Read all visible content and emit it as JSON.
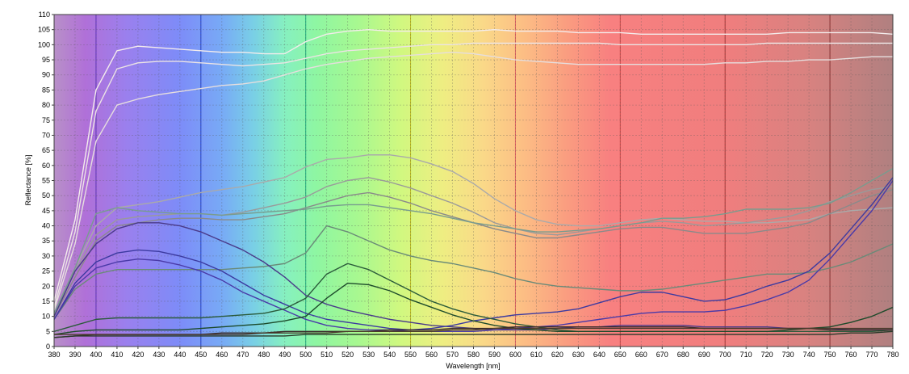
{
  "chart_data": {
    "type": "line",
    "title": "",
    "xlabel": "Wavelength [nm]",
    "ylabel": "Reflectance [%]",
    "xlim": [
      380,
      780
    ],
    "ylim": [
      0,
      110
    ],
    "x_ticks": [
      380,
      390,
      400,
      410,
      420,
      430,
      440,
      450,
      460,
      470,
      480,
      490,
      500,
      510,
      520,
      530,
      540,
      550,
      560,
      570,
      580,
      590,
      600,
      610,
      620,
      630,
      640,
      650,
      660,
      670,
      680,
      690,
      700,
      710,
      720,
      730,
      740,
      750,
      760,
      770,
      780
    ],
    "y_ticks": [
      0,
      5,
      10,
      15,
      20,
      25,
      30,
      35,
      40,
      45,
      50,
      55,
      60,
      65,
      70,
      75,
      80,
      85,
      90,
      95,
      100,
      105,
      110
    ],
    "grid": true,
    "legend": "none",
    "background": "visible spectrum gradient",
    "spectrum_colors": [
      {
        "x": 380,
        "color": "#b890c8"
      },
      {
        "x": 395,
        "color": "#b070d8"
      },
      {
        "x": 415,
        "color": "#9a80ee"
      },
      {
        "x": 440,
        "color": "#7d8cf8"
      },
      {
        "x": 460,
        "color": "#78aaf6"
      },
      {
        "x": 475,
        "color": "#79cfe6"
      },
      {
        "x": 490,
        "color": "#86f0c0"
      },
      {
        "x": 505,
        "color": "#8ef6a2"
      },
      {
        "x": 525,
        "color": "#a8f890"
      },
      {
        "x": 545,
        "color": "#d0f880"
      },
      {
        "x": 565,
        "color": "#eeee82"
      },
      {
        "x": 585,
        "color": "#fad888"
      },
      {
        "x": 605,
        "color": "#fcbc84"
      },
      {
        "x": 625,
        "color": "#fa9c80"
      },
      {
        "x": 645,
        "color": "#f88080"
      },
      {
        "x": 700,
        "color": "#f07e7e"
      },
      {
        "x": 740,
        "color": "#d88280"
      },
      {
        "x": 780,
        "color": "#b08080"
      }
    ],
    "vertical_lines": [
      {
        "x": 400,
        "color": "#6030c0"
      },
      {
        "x": 450,
        "color": "#2040d0"
      },
      {
        "x": 500,
        "color": "#20b080"
      },
      {
        "x": 550,
        "color": "#c0c020"
      },
      {
        "x": 600,
        "color": "#e06060"
      },
      {
        "x": 650,
        "color": "#d04848"
      },
      {
        "x": 700,
        "color": "#b03838"
      },
      {
        "x": 750,
        "color": "#903030"
      }
    ],
    "x": [
      380,
      390,
      400,
      410,
      420,
      430,
      440,
      450,
      460,
      470,
      480,
      490,
      500,
      510,
      520,
      530,
      540,
      550,
      560,
      570,
      580,
      590,
      600,
      610,
      620,
      630,
      640,
      650,
      660,
      670,
      680,
      690,
      700,
      710,
      720,
      730,
      740,
      750,
      760,
      770,
      780
    ],
    "series": [
      {
        "color": "#f4ecec",
        "values": [
          15,
          42,
          85,
          98,
          99.5,
          99,
          98.5,
          98,
          97.5,
          97.5,
          97,
          97,
          101,
          103.5,
          104.5,
          105,
          104.5,
          104.5,
          104.5,
          104.5,
          104.5,
          105,
          104.5,
          104.5,
          104.5,
          104,
          104,
          104,
          103.5,
          103.5,
          103.5,
          103.5,
          103.5,
          103.5,
          103.5,
          104,
          104,
          104,
          104,
          104,
          103.5
        ]
      },
      {
        "color": "#ece4e4",
        "values": [
          13,
          38,
          78,
          92,
          94,
          94.5,
          94.5,
          94,
          93.5,
          93,
          93.5,
          94,
          95.5,
          97,
          98,
          98.5,
          99,
          99.5,
          100,
          100,
          100.5,
          100.5,
          100.5,
          100.5,
          100.5,
          100.5,
          100.5,
          100,
          100,
          100,
          100,
          100,
          100,
          100,
          100.5,
          100.5,
          100.5,
          100.5,
          100.5,
          100.5,
          100.5
        ]
      },
      {
        "color": "#e6dede",
        "values": [
          12,
          34,
          68,
          80,
          82,
          83.5,
          84.5,
          85.5,
          86.5,
          87,
          88,
          90,
          92,
          93.5,
          94.5,
          95.5,
          96,
          96.5,
          97,
          97.5,
          97,
          96,
          95,
          94.5,
          94,
          93.5,
          93.5,
          93.5,
          93.5,
          93.5,
          93.5,
          93.5,
          94,
          94,
          94.5,
          94.5,
          95,
          95,
          95.5,
          96,
          96
        ]
      },
      {
        "color": "#aaaaaa",
        "values": [
          11,
          26,
          40,
          46,
          47,
          48,
          49.5,
          51,
          52,
          53,
          54.5,
          56,
          59.5,
          62,
          62.5,
          63.5,
          63.5,
          62.5,
          60.5,
          58,
          54,
          49,
          45,
          42,
          40.5,
          40,
          40,
          41,
          42,
          42.5,
          42,
          41.5,
          41.5,
          41,
          41,
          41.5,
          42,
          44,
          45,
          45.5,
          46
        ]
      },
      {
        "color": "#9a9a9a",
        "values": [
          11,
          25,
          37,
          42,
          43,
          43.5,
          44,
          44,
          43.5,
          44.5,
          46,
          47.5,
          49.5,
          53,
          55,
          56,
          54.5,
          52.5,
          50,
          47.5,
          44.5,
          41,
          39,
          37.5,
          37,
          38,
          39,
          40,
          41,
          41.5,
          41,
          40,
          40.5,
          41,
          42,
          43,
          45,
          48,
          50,
          52,
          53
        ]
      },
      {
        "color": "#8a8a8a",
        "values": [
          10,
          23,
          35,
          40,
          41,
          42,
          42.5,
          42.5,
          42,
          42,
          43,
          44,
          46,
          48,
          50,
          51,
          49.5,
          47.5,
          45,
          43,
          41,
          39,
          37.5,
          36,
          36,
          37,
          38,
          39,
          39.5,
          39.5,
          38.5,
          37.5,
          37.5,
          37.5,
          38.5,
          39.5,
          41,
          44,
          47,
          50,
          52
        ]
      },
      {
        "color": "#789c8e",
        "values": [
          11,
          26,
          44,
          46,
          45,
          44.5,
          44,
          44,
          43.5,
          44,
          44.5,
          45,
          45.5,
          46.5,
          47,
          47,
          46,
          45,
          44,
          42.5,
          41,
          40,
          39,
          38,
          38,
          38.5,
          39,
          40,
          41,
          42.5,
          42.5,
          43,
          44,
          45.5,
          45.5,
          45.5,
          46,
          47.5,
          51,
          55,
          59
        ]
      },
      {
        "color": "#6a8a78",
        "values": [
          9,
          19,
          24,
          25.5,
          25.5,
          25.5,
          25.5,
          25.5,
          25.5,
          26,
          26.5,
          27.5,
          31,
          40,
          38,
          35,
          32,
          30,
          28.5,
          27.5,
          26,
          24.5,
          22.5,
          21,
          20,
          19.5,
          19,
          18.5,
          18.5,
          19,
          20,
          21,
          22,
          23,
          24,
          24,
          24.5,
          26,
          28,
          31,
          34
        ]
      },
      {
        "color": "#4a3a8a",
        "values": [
          10,
          25,
          34,
          39,
          41,
          41,
          40,
          38,
          35,
          32,
          28,
          23,
          17,
          14,
          12,
          10.5,
          9,
          8,
          7,
          6.5,
          6,
          5.5,
          5.5,
          5.5,
          6,
          6.5,
          6.5,
          7,
          7,
          7,
          7,
          6.5,
          6.5,
          6.5,
          6.5,
          6,
          6,
          6,
          5.5,
          5.5,
          5.5
        ]
      },
      {
        "color": "#3c3aa0",
        "values": [
          9,
          21,
          28,
          31,
          32,
          31.5,
          30,
          28,
          25,
          21,
          17,
          14,
          11,
          9,
          8,
          7,
          6,
          5.5,
          6,
          7,
          8.5,
          9.5,
          10.5,
          11,
          11.5,
          12.5,
          14.5,
          16.5,
          18,
          18,
          16.5,
          15,
          15.5,
          17.5,
          20,
          22,
          25,
          31,
          39,
          47,
          56
        ]
      },
      {
        "color": "#4a3aa8",
        "values": [
          9,
          20,
          26,
          28,
          29,
          28.5,
          27,
          25,
          22,
          18,
          15,
          12,
          9,
          7,
          6,
          5.5,
          5.5,
          5,
          5,
          5,
          5,
          5.5,
          6,
          6.5,
          7,
          8,
          9,
          10,
          11,
          11.5,
          11.5,
          11.5,
          12,
          13.5,
          15.5,
          18,
          22,
          29,
          37,
          45,
          55
        ]
      },
      {
        "color": "#2a5a3a",
        "values": [
          5,
          7,
          9,
          9.5,
          9.5,
          9.5,
          9.5,
          9.5,
          10,
          10.5,
          11,
          12.5,
          16,
          24,
          27.5,
          25.5,
          22,
          18.5,
          15,
          12.5,
          10.5,
          9,
          7.5,
          6.5,
          5.5,
          5,
          5,
          5,
          5,
          5,
          5,
          5,
          5,
          5,
          5,
          5,
          5,
          5,
          5,
          5,
          5.5
        ]
      },
      {
        "color": "#1c4a2a",
        "values": [
          4,
          5,
          5.5,
          5.5,
          5.5,
          5.5,
          5.5,
          6,
          6.5,
          7,
          7.5,
          8.5,
          10,
          16,
          21,
          20.5,
          18.5,
          15.5,
          13,
          10.5,
          8.5,
          7,
          6,
          5.5,
          5,
          5,
          5,
          5,
          5,
          5,
          5,
          5,
          5,
          5,
          5,
          5.5,
          6,
          6.5,
          8,
          10,
          13
        ]
      },
      {
        "color": "#3a2a2a",
        "values": [
          3,
          3.5,
          4,
          4,
          4,
          4,
          4,
          4,
          4.5,
          4.5,
          4.5,
          5,
          5,
          5,
          5,
          5,
          5.5,
          5.5,
          5.5,
          6,
          6,
          6,
          6.5,
          6.5,
          6.5,
          6.5,
          6.5,
          6.5,
          6.5,
          6.5,
          6.5,
          6,
          6,
          6,
          6,
          6,
          6,
          5.5,
          5.5,
          5.5,
          5.5
        ]
      },
      {
        "color": "#4a3a2a",
        "values": [
          4,
          4,
          4,
          4,
          4,
          4,
          4,
          4,
          4,
          4,
          4.5,
          4.5,
          4.5,
          4.5,
          5,
          5,
          5,
          5,
          5,
          5.5,
          5.5,
          6,
          6,
          6,
          6,
          6,
          6,
          6,
          6,
          6,
          6,
          6,
          6,
          6,
          6,
          6,
          6,
          6,
          6,
          6,
          6
        ]
      },
      {
        "color": "#2a3a2a",
        "values": [
          3,
          3.5,
          3.5,
          3.5,
          3.5,
          3.5,
          3.5,
          3.5,
          3.5,
          3.5,
          3.5,
          3.5,
          4,
          4,
          4,
          4,
          4,
          4,
          4,
          4,
          4,
          4,
          4,
          4,
          4,
          4,
          4,
          4,
          4,
          4,
          4,
          4,
          4,
          4,
          4,
          4,
          4,
          4,
          4.5,
          4.5,
          5
        ]
      }
    ]
  }
}
